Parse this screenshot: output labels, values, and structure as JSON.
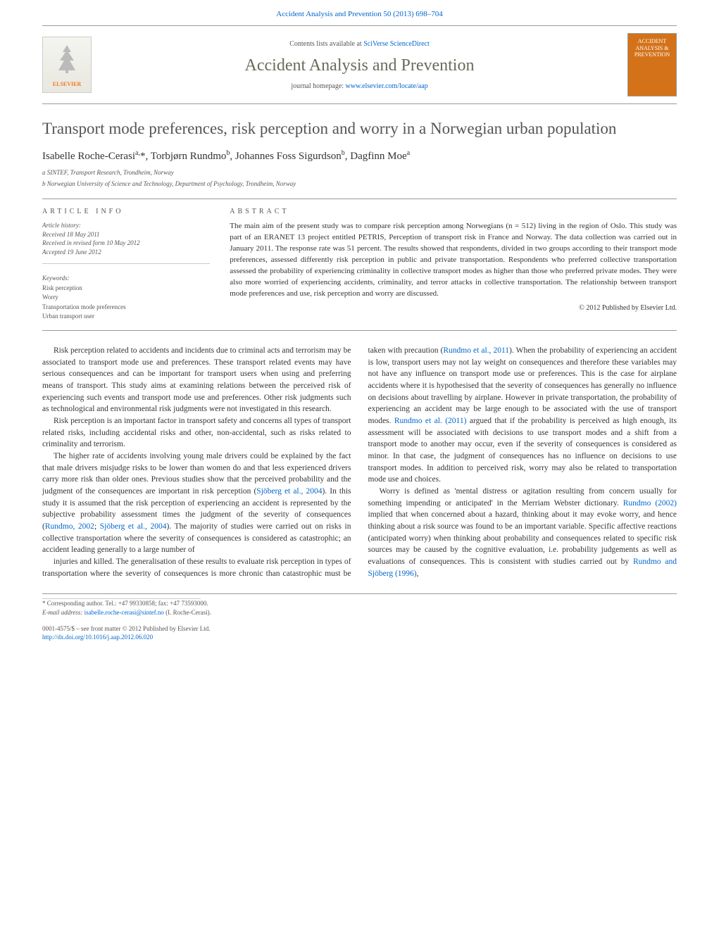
{
  "top_link": "Accident Analysis and Prevention 50 (2013) 698–704",
  "header": {
    "contents_prefix": "Contents lists available at ",
    "contents_link": "SciVerse ScienceDirect",
    "journal_name": "Accident Analysis and Prevention",
    "homepage_prefix": "journal homepage: ",
    "homepage_url": "www.elsevier.com/locate/aap",
    "publisher_name": "ELSEVIER",
    "cover_text": "ACCIDENT ANALYSIS & PREVENTION"
  },
  "article": {
    "title": "Transport mode preferences, risk perception and worry in a Norwegian urban population",
    "authors_html": "Isabelle Roche-Cerasi<sup>a,</sup>*, Torbjørn Rundmo<sup>b</sup>, Johannes Foss Sigurdson<sup>b</sup>, Dagfinn Moe<sup>a</sup>",
    "affiliations": [
      "a SINTEF, Transport Research, Trondheim, Norway",
      "b Norwegian University of Science and Technology, Department of Psychology, Trondheim, Norway"
    ]
  },
  "meta": {
    "article_info_label": "article info",
    "history_head": "Article history:",
    "received": "Received 18 May 2011",
    "revised": "Received in revised form 10 May 2012",
    "accepted": "Accepted 19 June 2012",
    "keywords_head": "Keywords:",
    "keywords": [
      "Risk perception",
      "Worry",
      "Transportation mode preferences",
      "Urban transport user"
    ]
  },
  "abstract": {
    "label": "abstract",
    "text": "The main aim of the present study was to compare risk perception among Norwegians (n = 512) living in the region of Oslo. This study was part of an ERANET 13 project entitled PETRIS, Perception of transport risk in France and Norway. The data collection was carried out in January 2011. The response rate was 51 percent. The results showed that respondents, divided in two groups according to their transport mode preferences, assessed differently risk perception in public and private transportation. Respondents who preferred collective transportation assessed the probability of experiencing criminality in collective transport modes as higher than those who preferred private modes. They were also more worried of experiencing accidents, criminality, and terror attacks in collective transportation. The relationship between transport mode preferences and use, risk perception and worry are discussed.",
    "copyright": "© 2012 Published by Elsevier Ltd."
  },
  "body": {
    "p1": "Risk perception related to accidents and incidents due to criminal acts and terrorism may be associated to transport mode use and preferences. These transport related events may have serious consequences and can be important for transport users when using and preferring means of transport. This study aims at examining relations between the perceived risk of experiencing such events and transport mode use and preferences. Other risk judgments such as technological and environmental risk judgments were not investigated in this research.",
    "p2": "Risk perception is an important factor in transport safety and concerns all types of transport related risks, including accidental risks and other, non-accidental, such as risks related to criminality and terrorism.",
    "p3_pre": "The higher rate of accidents involving young male drivers could be explained by the fact that male drivers misjudge risks to be lower than women do and that less experienced drivers carry more risk than older ones. Previous studies show that the perceived probability and the judgment of the consequences are important in risk perception (",
    "p3_link1": "Sjöberg et al., 2004",
    "p3_mid1": "). In this study it is assumed that the risk perception of experiencing an accident is represented by the subjective probability assessment times the judgment of the severity of consequences (",
    "p3_link2": "Rundmo, 2002",
    "p3_sep": "; ",
    "p3_link3": "Sjöberg et al., 2004",
    "p3_post": "). The majority of studies were carried out on risks in collective transportation where the severity of consequences is considered as catastrophic; an accident leading generally to a large number of",
    "p4_pre": "injuries and killed. The generalisation of these results to evaluate risk perception in types of transportation where the severity of consequences is more chronic than catastrophic must be taken with precaution (",
    "p4_link1": "Rundmo et al., 2011",
    "p4_mid": "). When the probability of experiencing an accident is low, transport users may not lay weight on consequences and therefore these variables may not have any influence on transport mode use or preferences. This is the case for airplane accidents where it is hypothesised that the severity of consequences has generally no influence on decisions about travelling by airplane. However in private transportation, the probability of experiencing an accident may be large enough to be associated with the use of transport modes. ",
    "p4_link2": "Rundmo et al. (2011)",
    "p4_post": " argued that if the probability is perceived as high enough, its assessment will be associated with decisions to use transport modes and a shift from a transport mode to another may occur, even if the severity of consequences is considered as minor. In that case, the judgment of consequences has no influence on decisions to use transport modes. In addition to perceived risk, worry may also be related to transportation mode use and choices.",
    "p5_pre": "Worry is defined as 'mental distress or agitation resulting from concern usually for something impending or anticipated' in the Merriam Webster dictionary. ",
    "p5_link1": "Rundmo (2002)",
    "p5_mid": " implied that when concerned about a hazard, thinking about it may evoke worry, and hence thinking about a risk source was found to be an important variable. Specific affective reactions (anticipated worry) when thinking about probability and consequences related to specific risk sources may be caused by the cognitive evaluation, i.e. probability judgements as well as evaluations of consequences. This is consistent with studies carried out by ",
    "p5_link2": "Rundmo and Sjöberg (1996)",
    "p5_post": ","
  },
  "footer": {
    "corr_label": "* Corresponding author. Tel.: +47 99330858; fax: +47 73593000.",
    "email_label": "E-mail address: ",
    "email": "isabelle.roche-cerasi@sintef.no",
    "email_suffix": " (I. Roche-Cerasi).",
    "issn_line": "0001-4575/$ – see front matter © 2012 Published by Elsevier Ltd.",
    "doi_url": "http://dx.doi.org/10.1016/j.aap.2012.06.020"
  },
  "colors": {
    "link": "#0066cc",
    "heading": "#555555",
    "journal_name": "#6a6a5a",
    "publisher_orange": "#f47920",
    "cover_bg": "#d4721a"
  }
}
